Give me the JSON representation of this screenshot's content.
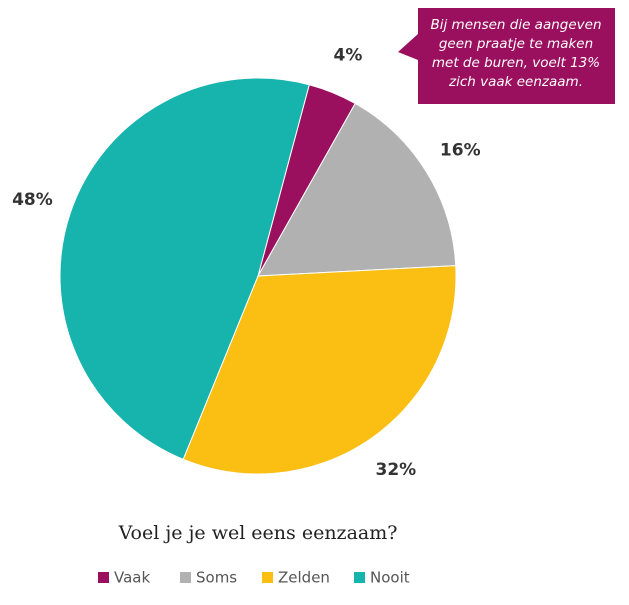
{
  "chart_data": {
    "type": "pie",
    "title": "Voel je je wel eens eenzaam?",
    "annotation": [
      "Bij mensen die aangeven",
      "geen praatje te maken",
      "met de buren, voelt 13%",
      "zich vaak eenzaam."
    ],
    "categories": [
      "Vaak",
      "Soms",
      "Zelden",
      "Nooit"
    ],
    "values": [
      4,
      16,
      32,
      48
    ],
    "value_labels": [
      "4%",
      "16%",
      "32%",
      "48%"
    ],
    "colors": [
      "#9b0f5f",
      "#b1b1b1",
      "#fbbf14",
      "#17b3ad"
    ],
    "legend": "bottom"
  }
}
